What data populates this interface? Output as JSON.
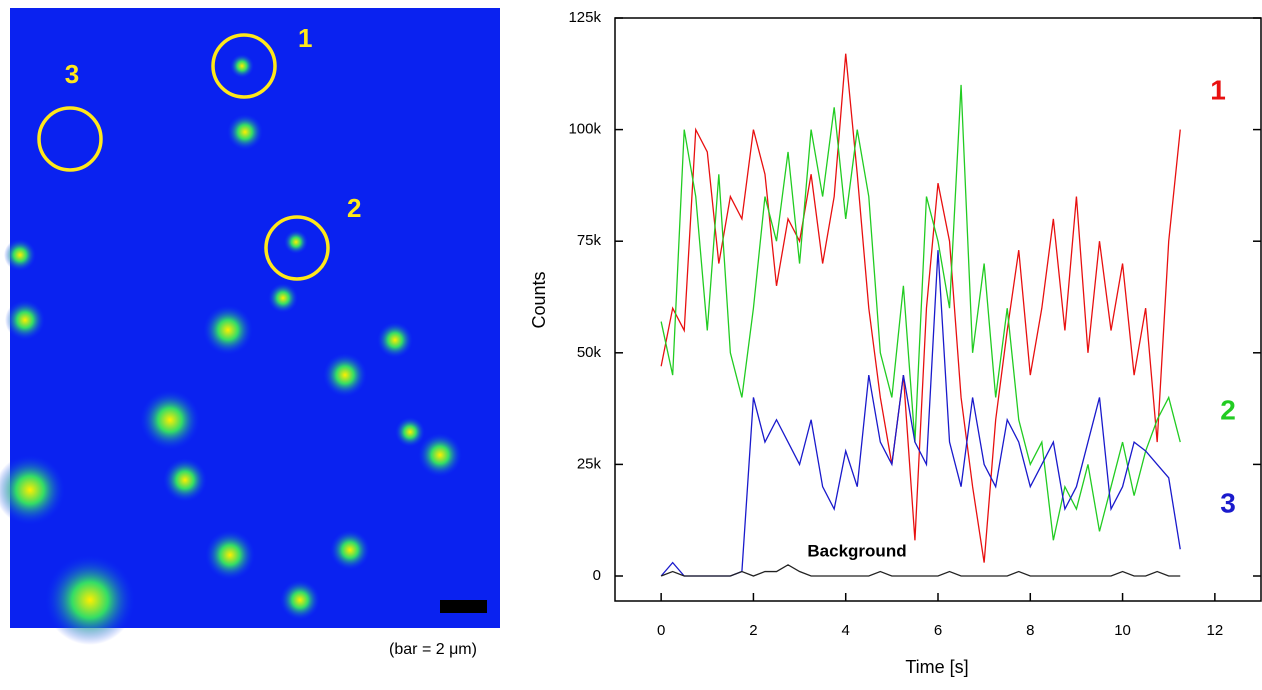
{
  "image": {
    "spot_labels": [
      "1",
      "2",
      "3"
    ],
    "caption": "(bar = 2 μm)"
  },
  "chart_data": {
    "type": "line",
    "xlabel": "Time [s]",
    "ylabel": "Counts",
    "annotation": "Background",
    "x": [
      0,
      0.25,
      0.5,
      0.75,
      1,
      1.25,
      1.5,
      1.75,
      2,
      2.25,
      2.5,
      2.75,
      3,
      3.25,
      3.5,
      3.75,
      4,
      4.25,
      4.5,
      4.75,
      5,
      5.25,
      5.5,
      5.75,
      6,
      6.25,
      6.5,
      6.75,
      7,
      7.25,
      7.5,
      7.75,
      8,
      8.25,
      8.5,
      8.75,
      9,
      9.25,
      9.5,
      9.75,
      10,
      10.25,
      10.5,
      10.75,
      11,
      11.25
    ],
    "series": [
      {
        "name": "1",
        "color": "#e81010",
        "values": [
          47000,
          60000,
          55000,
          100000,
          95000,
          70000,
          85000,
          80000,
          100000,
          90000,
          65000,
          80000,
          75000,
          90000,
          70000,
          85000,
          117000,
          90000,
          60000,
          40000,
          25000,
          45000,
          8000,
          60000,
          88000,
          75000,
          40000,
          20000,
          3000,
          35000,
          55000,
          73000,
          45000,
          60000,
          80000,
          55000,
          85000,
          50000,
          75000,
          55000,
          70000,
          45000,
          60000,
          30000,
          75000,
          100000
        ]
      },
      {
        "name": "2",
        "color": "#22cc22",
        "values": [
          57000,
          45000,
          100000,
          85000,
          55000,
          90000,
          50000,
          40000,
          60000,
          85000,
          75000,
          95000,
          70000,
          100000,
          85000,
          105000,
          80000,
          100000,
          85000,
          50000,
          40000,
          65000,
          30000,
          85000,
          75000,
          60000,
          110000,
          50000,
          70000,
          40000,
          60000,
          35000,
          25000,
          30000,
          8000,
          20000,
          15000,
          25000,
          10000,
          20000,
          30000,
          18000,
          28000,
          35000,
          40000,
          30000
        ]
      },
      {
        "name": "3",
        "color": "#1a1acc",
        "values": [
          0,
          3000,
          0,
          0,
          0,
          0,
          0,
          1000,
          40000,
          30000,
          35000,
          30000,
          25000,
          35000,
          20000,
          15000,
          28000,
          20000,
          45000,
          30000,
          25000,
          45000,
          30000,
          25000,
          73000,
          30000,
          20000,
          40000,
          25000,
          20000,
          35000,
          30000,
          20000,
          25000,
          30000,
          15000,
          20000,
          30000,
          40000,
          15000,
          20000,
          30000,
          28000,
          25000,
          22000,
          6000
        ]
      },
      {
        "name": "Background",
        "color": "#222222",
        "values": [
          0,
          1000,
          0,
          0,
          0,
          0,
          0,
          1000,
          0,
          1000,
          1000,
          2500,
          1000,
          0,
          0,
          0,
          0,
          0,
          0,
          1000,
          0,
          0,
          0,
          0,
          0,
          1000,
          0,
          0,
          0,
          0,
          0,
          1000,
          0,
          0,
          0,
          0,
          0,
          0,
          0,
          0,
          1000,
          0,
          0,
          1000,
          0,
          0
        ]
      }
    ],
    "xlim": [
      -1,
      13
    ],
    "xticks": [
      0,
      2,
      4,
      6,
      8,
      10,
      12
    ],
    "ylim": [
      -5600,
      125000
    ],
    "yticks": [
      0,
      {
        "value": 25000,
        "label": "25k"
      },
      {
        "value": 50000,
        "label": "50k"
      },
      {
        "value": 75000,
        "label": "75k"
      },
      {
        "value": 100000,
        "label": "100k"
      },
      {
        "value": 125000,
        "label": "125k"
      }
    ]
  }
}
